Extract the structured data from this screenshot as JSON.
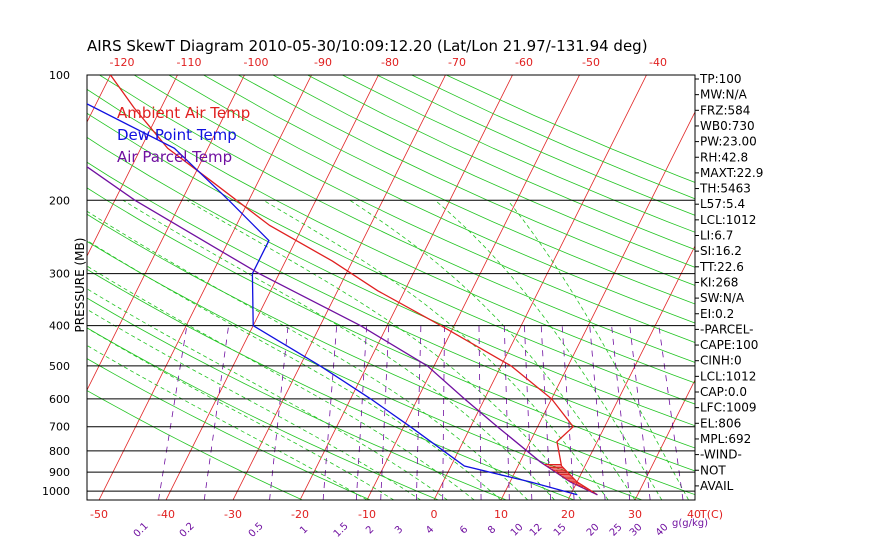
{
  "chart_data": {
    "type": "line",
    "title": "AIRS SkewT Diagram 2010-05-30/10:09:12.20 (Lat/Lon 21.97/-131.94 deg)",
    "ylabel": "PRESSURE (MB)",
    "x_axis_unit_label": "T(C)",
    "mixing_ratio_unit_label": "g(g/kg)",
    "pressure_levels": [
      100,
      200,
      300,
      400,
      500,
      600,
      700,
      800,
      900,
      1000
    ],
    "temp_ticks_bottom": [
      "-50",
      "-40",
      "-30",
      "-20",
      "-10",
      "0",
      "10",
      "20",
      "30",
      "40"
    ],
    "temp_ticks_top": [
      "-120",
      "-110",
      "-100",
      "-90",
      "-80",
      "-70",
      "-60",
      "-50",
      "-40"
    ],
    "mixing_ratio_ticks": [
      "0.1",
      "0.2",
      "0.5",
      "1",
      "1.5",
      "2",
      "3",
      "4",
      "6",
      "8",
      "10",
      "12",
      "15",
      "20",
      "25",
      "30",
      "40"
    ],
    "legend": [
      {
        "name": "Ambient Air Temp",
        "color": "#e02020"
      },
      {
        "name": "Dew Point Temp",
        "color": "#1010e0"
      },
      {
        "name": "Air Parcel Temp",
        "color": "#7010a0"
      }
    ],
    "series": [
      {
        "name": "Ambient Air Temp",
        "color": "#e02020",
        "points": [
          [
            1020,
            24.0
          ],
          [
            950,
            20.0
          ],
          [
            870,
            16.5
          ],
          [
            760,
            14.0
          ],
          [
            700,
            15.3
          ],
          [
            600,
            10.0
          ],
          [
            500,
            1.5
          ],
          [
            400,
            -12.0
          ],
          [
            330,
            -24.0
          ],
          [
            280,
            -33.0
          ],
          [
            230,
            -45.0
          ],
          [
            180,
            -57.0
          ],
          [
            150,
            -66.0
          ],
          [
            120,
            -74.0
          ],
          [
            100,
            -80.0
          ]
        ]
      },
      {
        "name": "Dew Point Temp",
        "color": "#1010e0",
        "points": [
          [
            1020,
            21.0
          ],
          [
            950,
            13.0
          ],
          [
            870,
            2.0
          ],
          [
            700,
            -9.0
          ],
          [
            600,
            -17.0
          ],
          [
            500,
            -27.0
          ],
          [
            400,
            -40.0
          ],
          [
            300,
            -44.0
          ],
          [
            250,
            -44.0
          ],
          [
            200,
            -53.0
          ],
          [
            150,
            -65.0
          ],
          [
            100,
            -92.0
          ]
        ]
      },
      {
        "name": "Air Parcel Temp",
        "color": "#7010a0",
        "points": [
          [
            1020,
            24.0
          ],
          [
            950,
            19.0
          ],
          [
            850,
            13.0
          ],
          [
            700,
            4.0
          ],
          [
            600,
            -3.0
          ],
          [
            500,
            -11.0
          ],
          [
            400,
            -24.0
          ],
          [
            300,
            -43.0
          ],
          [
            200,
            -67.0
          ],
          [
            150,
            -82.0
          ],
          [
            100,
            -102.0
          ]
        ]
      }
    ],
    "stats": [
      "TP:100",
      "MW:N/A",
      "FRZ:584",
      "WB0:730",
      "PW:23.00",
      "RH:42.8",
      "MAXT:22.9",
      "TH:5463",
      "L57:5.4",
      "LCL:1012",
      "LI:6.7",
      "SI:16.2",
      "TT:22.6",
      "KI:268",
      "SW:N/A",
      "EI:0.2",
      "-PARCEL-",
      "CAPE:100",
      "CINH:0",
      "LCL:1012",
      "CAP:0.0",
      "LFC:1009",
      "EL:806",
      "MPL:692",
      "-WIND-",
      "NOT",
      "AVAIL"
    ]
  }
}
